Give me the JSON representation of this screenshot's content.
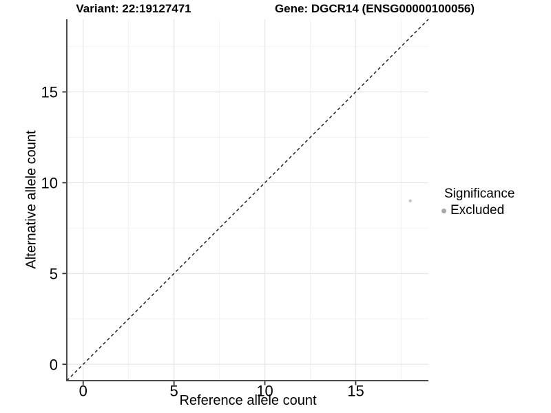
{
  "chart_data": {
    "type": "scatter",
    "titles": [
      "Variant: 22:19127471",
      "Gene: DGCR14 (ENSG00000100056)"
    ],
    "xlabel": "Reference allele count",
    "ylabel": "Alternative allele count",
    "xlim": [
      -0.9,
      19.0
    ],
    "ylim": [
      -0.9,
      19.0
    ],
    "x_major_ticks": [
      0,
      5,
      10,
      15
    ],
    "y_major_ticks": [
      0,
      5,
      10,
      15
    ],
    "x_minor_ticks": [
      2.5,
      7.5,
      12.5,
      17.5
    ],
    "y_minor_ticks": [
      2.5,
      7.5,
      12.5,
      17.5
    ],
    "grid": "major+minor",
    "points": [
      {
        "x": 18,
        "y": 9,
        "significance": "Excluded"
      }
    ],
    "identity_line": {
      "slope": 1,
      "intercept": 0,
      "style": "dashed"
    },
    "legend": {
      "title": "Significance",
      "position": "right",
      "items": [
        {
          "label": "Excluded",
          "swatch": "circle"
        }
      ]
    },
    "colors": {
      "background": "#ffffff",
      "grid_major": "#e6e6e6",
      "grid_minor": "#f2f2f2",
      "axis_line": "#4a4a4a",
      "tick_mark": "#333333",
      "text": "#000000",
      "identity_line": "#111111",
      "point": "#c2c2c2",
      "legend_key": "#a8a8a8"
    }
  }
}
